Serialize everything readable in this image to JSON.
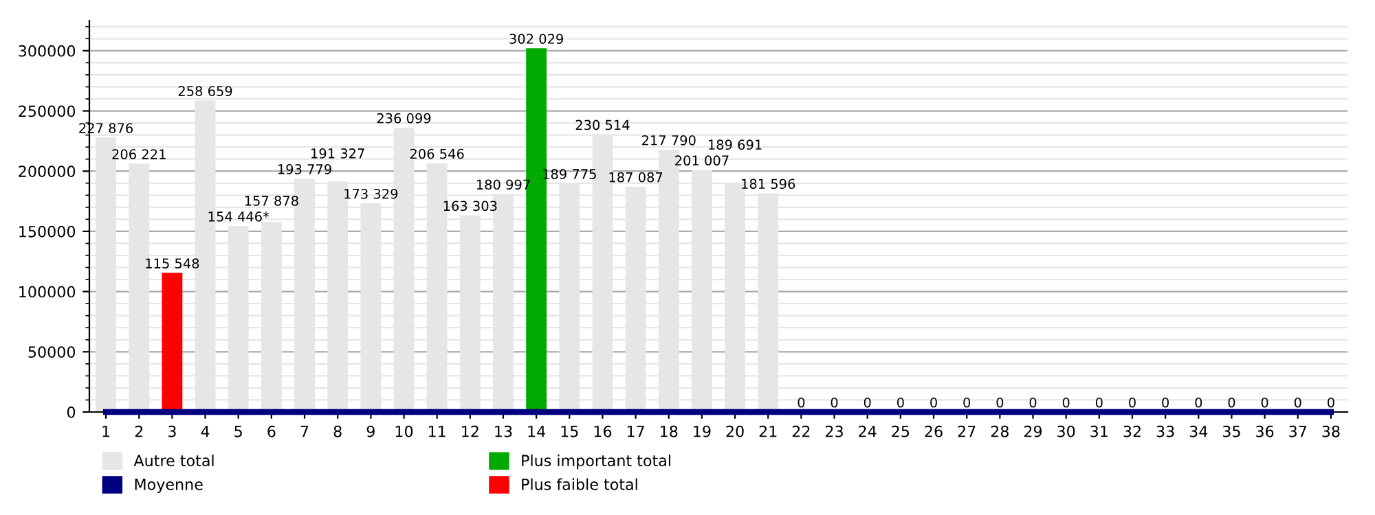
{
  "chart_data": {
    "type": "bar",
    "categories": [
      "1",
      "2",
      "3",
      "4",
      "5",
      "6",
      "7",
      "8",
      "9",
      "10",
      "11",
      "12",
      "13",
      "14",
      "15",
      "16",
      "17",
      "18",
      "19",
      "20",
      "21",
      "22",
      "23",
      "24",
      "25",
      "26",
      "27",
      "28",
      "29",
      "30",
      "31",
      "32",
      "33",
      "34",
      "35",
      "36",
      "37",
      "38"
    ],
    "series": [
      {
        "name": "Autre total",
        "color": "#e6e6e6",
        "values": [
          227876,
          206221,
          null,
          258659,
          154446,
          157878,
          193779,
          191327,
          173329,
          236099,
          206546,
          163303,
          180997,
          null,
          189775,
          230514,
          187087,
          217790,
          201007,
          189691,
          181596,
          0,
          0,
          0,
          0,
          0,
          0,
          0,
          0,
          0,
          0,
          0,
          0,
          0,
          0,
          0,
          0,
          0
        ],
        "value_labels": [
          "227 876",
          "206 221",
          null,
          "258 659",
          "154 446*",
          "157 878",
          "193 779",
          "191 327",
          "173 329",
          "236 099",
          "206 546",
          "163 303",
          "180 997",
          null,
          "189 775",
          "230 514",
          "187 087",
          "217 790",
          "201 007",
          "189 691",
          "181 596",
          "0",
          "0",
          "0",
          "0",
          "0",
          "0",
          "0",
          "0",
          "0",
          "0",
          "0",
          "0",
          "0",
          "0",
          "0",
          "0",
          "0"
        ]
      },
      {
        "name": "Moyenne",
        "type": "line",
        "color": "#000080",
        "values": [
          0,
          0,
          0,
          0,
          0,
          0,
          0,
          0,
          0,
          0,
          0,
          0,
          0,
          0,
          0,
          0,
          0,
          0,
          0,
          0,
          0,
          0,
          0,
          0,
          0,
          0,
          0,
          0,
          0,
          0,
          0,
          0,
          0,
          0,
          0,
          0,
          0,
          0
        ]
      },
      {
        "name": "Plus important total",
        "color": "#00aa00",
        "values": [
          null,
          null,
          null,
          null,
          null,
          null,
          null,
          null,
          null,
          null,
          null,
          null,
          null,
          302029,
          null,
          null,
          null,
          null,
          null,
          null,
          null,
          null,
          null,
          null,
          null,
          null,
          null,
          null,
          null,
          null,
          null,
          null,
          null,
          null,
          null,
          null,
          null,
          null
        ],
        "value_labels": [
          null,
          null,
          null,
          null,
          null,
          null,
          null,
          null,
          null,
          null,
          null,
          null,
          null,
          "302 029",
          null,
          null,
          null,
          null,
          null,
          null,
          null,
          null,
          null,
          null,
          null,
          null,
          null,
          null,
          null,
          null,
          null,
          null,
          null,
          null,
          null,
          null,
          null,
          null
        ]
      },
      {
        "name": "Plus faible total",
        "color": "#ff0000",
        "values": [
          null,
          null,
          115548,
          null,
          null,
          null,
          null,
          null,
          null,
          null,
          null,
          null,
          null,
          null,
          null,
          null,
          null,
          null,
          null,
          null,
          null,
          null,
          null,
          null,
          null,
          null,
          null,
          null,
          null,
          null,
          null,
          null,
          null,
          null,
          null,
          null,
          null,
          null
        ],
        "value_labels": [
          null,
          null,
          "115 548",
          null,
          null,
          null,
          null,
          null,
          null,
          null,
          null,
          null,
          null,
          null,
          null,
          null,
          null,
          null,
          null,
          null,
          null,
          null,
          null,
          null,
          null,
          null,
          null,
          null,
          null,
          null,
          null,
          null,
          null,
          null,
          null,
          null,
          null,
          null
        ]
      }
    ],
    "ylim": [
      0,
      325000
    ],
    "yticks": [
      0,
      50000,
      100000,
      150000,
      200000,
      250000,
      300000
    ],
    "grid": "y",
    "legend": "bottom"
  }
}
